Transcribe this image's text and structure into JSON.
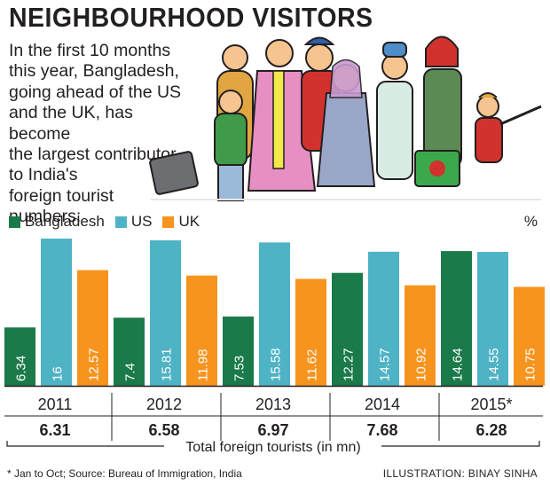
{
  "title": "NEIGHBOURHOOD VISITORS",
  "intro_lines": [
    "In the first 10 months",
    "this year, Bangladesh,",
    "going ahead of the US",
    "and the UK, has become",
    "the largest contributor",
    "to India's",
    "foreign tourist",
    "numbers:"
  ],
  "unit": "%",
  "colors": {
    "bangladesh": "#1a7a4a",
    "us": "#4fb3c6",
    "uk": "#f7941e",
    "text": "#231f20"
  },
  "chart_data": {
    "type": "bar",
    "title": "NEIGHBOURHOOD VISITORS",
    "ylabel": "%",
    "ylim": [
      0,
      16
    ],
    "categories": [
      "2011",
      "2012",
      "2013",
      "2014",
      "2015*"
    ],
    "series": [
      {
        "name": "Bangladesh",
        "values": [
          6.34,
          7.4,
          7.53,
          12.27,
          14.64
        ],
        "labels": [
          "6.34",
          "7.4",
          "7.53",
          "12.27",
          "14.64"
        ]
      },
      {
        "name": "US",
        "values": [
          16,
          15.81,
          15.58,
          14.57,
          14.55
        ],
        "labels": [
          "16",
          "15.81",
          "15.58",
          "14.57",
          "14.55"
        ]
      },
      {
        "name": "UK",
        "values": [
          12.57,
          11.98,
          11.62,
          10.92,
          10.75
        ],
        "labels": [
          "12.57",
          "11.98",
          "11.62",
          "10.92",
          "10.75"
        ]
      }
    ],
    "totals": [
      "6.31",
      "6.58",
      "6.97",
      "7.68",
      "6.28"
    ],
    "totals_label": "Total foreign tourists (in mn)"
  },
  "footnote": "* Jan to Oct;  Source: Bureau of Immigration, India",
  "credit": "ILLUSTRATION: BINAY SINHA"
}
